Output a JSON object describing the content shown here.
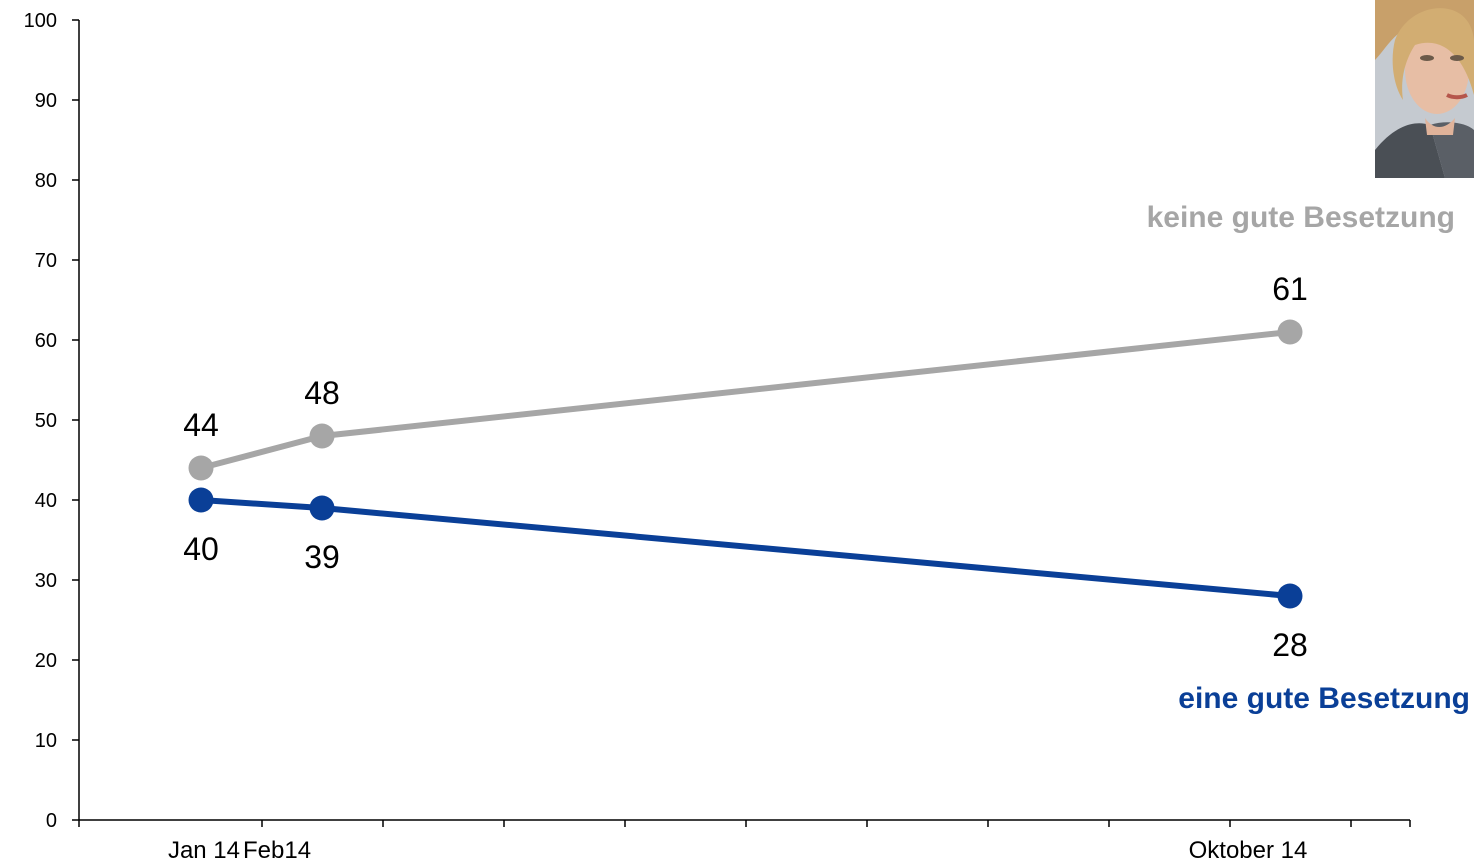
{
  "chart_data": {
    "type": "line",
    "categories": [
      "Jan 14",
      "Feb14",
      "",
      "",
      "",
      "",
      "",
      "",
      "",
      "Oktober 14"
    ],
    "y_ticks": [
      "0",
      "10",
      "20",
      "30",
      "40",
      "50",
      "60",
      "70",
      "80",
      "90",
      "100"
    ],
    "ylim": [
      0,
      100
    ],
    "grid": false,
    "legend": "none",
    "series": [
      {
        "name": "keine gute Besetzung",
        "color": "#a6a6a6",
        "points": [
          {
            "category_index": 0,
            "value": 44,
            "label": "44"
          },
          {
            "category_index": 1,
            "value": 48,
            "label": "48"
          },
          {
            "category_index": 9,
            "value": 61,
            "label": "61"
          }
        ]
      },
      {
        "name": "eine gute Besetzung",
        "color": "#0a3f97",
        "points": [
          {
            "category_index": 0,
            "value": 40,
            "label": "40"
          },
          {
            "category_index": 1,
            "value": 39,
            "label": "39"
          },
          {
            "category_index": 9,
            "value": 28,
            "label": "28"
          }
        ]
      }
    ]
  },
  "images": {
    "portrait": "portrait-photo"
  }
}
